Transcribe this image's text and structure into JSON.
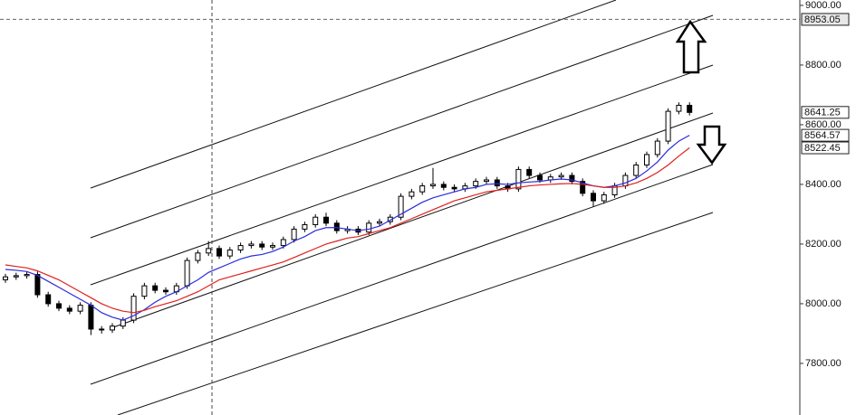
{
  "chart_data": {
    "type": "candlestick",
    "ylim": [
      7627,
      9018
    ],
    "yticks": [
      {
        "value": 7800,
        "label": "7800.00"
      },
      {
        "value": 8000,
        "label": "8000.00"
      },
      {
        "value": 8200,
        "label": "8200.00"
      },
      {
        "value": 8400,
        "label": "8400.00"
      },
      {
        "value": 8600,
        "label": "8600.00"
      },
      {
        "value": 8800,
        "label": "8800.00"
      },
      {
        "value": 9000,
        "label": "9000.00"
      }
    ],
    "crosshair_price": 8953.05,
    "up_color": "#ffffff",
    "down_color": "#000000",
    "open": [
      8080,
      8090,
      8094,
      8098,
      8030,
      8000,
      7985,
      7975,
      7995,
      7915,
      7912,
      7925,
      7945,
      8025,
      8060,
      8045,
      8040,
      8060,
      8145,
      8170,
      8185,
      8160,
      8180,
      8195,
      8200,
      8190,
      8195,
      8215,
      8250,
      8265,
      8290,
      8270,
      8245,
      8250,
      8240,
      8270,
      8275,
      8290,
      8360,
      8375,
      8395,
      8400,
      8390,
      8385,
      8395,
      8410,
      8415,
      8395,
      8385,
      8450,
      8430,
      8415,
      8425,
      8430,
      8410,
      8370,
      8345,
      8365,
      8395,
      8430,
      8465,
      8500,
      8545,
      8645,
      8665
    ],
    "high": [
      8100,
      8104,
      8108,
      8108,
      8040,
      8010,
      7995,
      8005,
      8005,
      7925,
      7935,
      7955,
      8035,
      8070,
      8070,
      8055,
      8070,
      8155,
      8180,
      8210,
      8195,
      8190,
      8205,
      8210,
      8210,
      8205,
      8225,
      8260,
      8275,
      8300,
      8305,
      8280,
      8260,
      8260,
      8280,
      8285,
      8300,
      8370,
      8385,
      8405,
      8455,
      8410,
      8400,
      8405,
      8420,
      8425,
      8425,
      8405,
      8460,
      8460,
      8440,
      8435,
      8440,
      8440,
      8420,
      8380,
      8375,
      8405,
      8440,
      8475,
      8510,
      8555,
      8655,
      8675,
      8675
    ],
    "low": [
      8070,
      8080,
      8084,
      8020,
      7990,
      7975,
      7965,
      7965,
      7895,
      7900,
      7902,
      7915,
      7935,
      8015,
      8035,
      8030,
      8030,
      8050,
      8135,
      8160,
      8150,
      8150,
      8170,
      8185,
      8180,
      8180,
      8185,
      8205,
      8240,
      8255,
      8260,
      8235,
      8235,
      8230,
      8230,
      8260,
      8265,
      8280,
      8350,
      8365,
      8385,
      8380,
      8375,
      8375,
      8385,
      8400,
      8385,
      8375,
      8375,
      8420,
      8405,
      8405,
      8415,
      8400,
      8360,
      8325,
      8335,
      8355,
      8385,
      8420,
      8455,
      8490,
      8535,
      8635,
      8631
    ],
    "close": [
      8090,
      8094,
      8098,
      8030,
      8000,
      7985,
      7975,
      7995,
      7915,
      7912,
      7925,
      7945,
      8025,
      8060,
      8045,
      8040,
      8060,
      8145,
      8170,
      8185,
      8160,
      8180,
      8195,
      8200,
      8190,
      8195,
      8215,
      8250,
      8265,
      8290,
      8270,
      8245,
      8250,
      8240,
      8270,
      8275,
      8290,
      8360,
      8375,
      8395,
      8400,
      8390,
      8385,
      8395,
      8410,
      8415,
      8395,
      8385,
      8450,
      8430,
      8415,
      8425,
      8430,
      8410,
      8370,
      8345,
      8365,
      8395,
      8430,
      8465,
      8500,
      8545,
      8645,
      8665,
      8641.25
    ],
    "moving_averages": [
      {
        "color": "#2b2bdd",
        "values": [
          8115,
          8112,
          8108,
          8095,
          8075,
          8055,
          8035,
          8015,
          7995,
          7970,
          7955,
          7945,
          7960,
          7980,
          8005,
          8025,
          8040,
          8060,
          8080,
          8105,
          8120,
          8135,
          8150,
          8160,
          8165,
          8175,
          8190,
          8210,
          8225,
          8245,
          8255,
          8255,
          8250,
          8245,
          8250,
          8260,
          8280,
          8300,
          8320,
          8340,
          8355,
          8365,
          8375,
          8385,
          8390,
          8400,
          8402,
          8400,
          8405,
          8408,
          8410,
          8415,
          8418,
          8415,
          8405,
          8395,
          8390,
          8395,
          8405,
          8420,
          8445,
          8475,
          8515,
          8545,
          8564.57
        ]
      },
      {
        "color": "#e0201b",
        "values": [
          8130,
          8125,
          8120,
          8110,
          8095,
          8080,
          8060,
          8040,
          8020,
          8000,
          7985,
          7975,
          7970,
          7978,
          7990,
          8000,
          8010,
          8025,
          8040,
          8060,
          8080,
          8090,
          8100,
          8110,
          8120,
          8130,
          8140,
          8155,
          8170,
          8185,
          8200,
          8210,
          8220,
          8225,
          8235,
          8245,
          8255,
          8270,
          8285,
          8300,
          8315,
          8330,
          8345,
          8355,
          8365,
          8375,
          8380,
          8385,
          8390,
          8395,
          8398,
          8400,
          8402,
          8403,
          8400,
          8395,
          8390,
          8390,
          8395,
          8405,
          8420,
          8440,
          8465,
          8495,
          8522.45
        ]
      }
    ]
  }
}
